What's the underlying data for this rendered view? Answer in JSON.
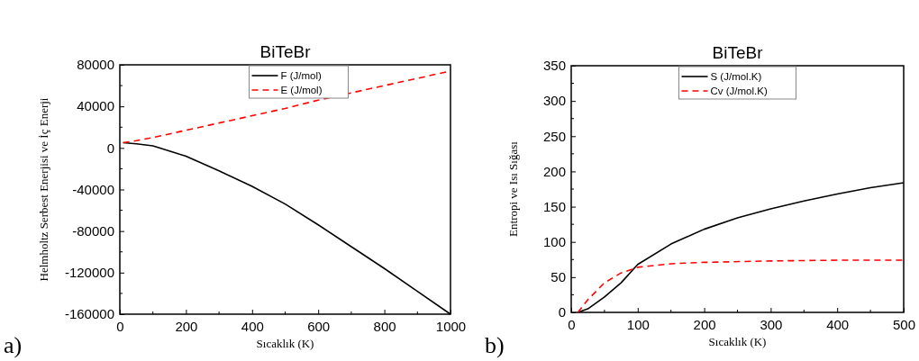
{
  "chart_data": [
    {
      "type": "line",
      "title": "BiTeBr",
      "xlabel": "Sıcaklık (K)",
      "ylabel": "Helmholtz Serbest Enerjisi ve İç Enerji",
      "annotations": [
        "a)"
      ],
      "legend": "top",
      "grid": false,
      "xlim": [
        0,
        1000
      ],
      "xticks": [
        0,
        200,
        400,
        600,
        800,
        1000
      ],
      "ylim": [
        -160000,
        80000
      ],
      "yticks": [
        -160000,
        -120000,
        -80000,
        -40000,
        0,
        40000,
        80000
      ],
      "series": [
        {
          "name": "F (J/mol)",
          "color": "#000000",
          "line_style": "solid",
          "x": [
            10,
            50,
            100,
            200,
            300,
            400,
            500,
            600,
            700,
            800,
            900,
            1000
          ],
          "values": [
            5000,
            4000,
            2000,
            -8000,
            -22000,
            -37000,
            -54000,
            -74000,
            -95000,
            -116000,
            -138000,
            -160000
          ]
        },
        {
          "name": "E (J/mol)",
          "color": "#ff0000",
          "line_style": "dashed",
          "x": [
            10,
            50,
            100,
            200,
            300,
            400,
            500,
            600,
            700,
            800,
            900,
            1000
          ],
          "values": [
            5000,
            7000,
            10000,
            17000,
            24000,
            31000,
            38000,
            46000,
            53000,
            60000,
            67000,
            74000
          ]
        }
      ]
    },
    {
      "type": "line",
      "title": "BiTeBr",
      "xlabel": "Sıcaklık (K)",
      "ylabel": "Entropi ve Isı Sığası",
      "annotations": [
        "b)"
      ],
      "legend": "top",
      "grid": false,
      "xlim": [
        0,
        500
      ],
      "xticks": [
        0,
        100,
        200,
        300,
        400,
        500
      ],
      "ylim": [
        0,
        350
      ],
      "yticks": [
        0,
        50,
        100,
        150,
        200,
        250,
        300,
        350
      ],
      "series": [
        {
          "name": "S (J/mol.K)",
          "color": "#000000",
          "line_style": "solid",
          "x": [
            10,
            25,
            50,
            75,
            100,
            150,
            200,
            250,
            300,
            350,
            400,
            450,
            500
          ],
          "values": [
            0,
            5,
            22,
            42,
            68,
            97,
            118,
            134,
            147,
            158,
            168,
            177,
            184
          ]
        },
        {
          "name": "Cv (J/mol.K)",
          "color": "#ff0000",
          "line_style": "dashed",
          "x": [
            10,
            25,
            50,
            75,
            100,
            150,
            200,
            300,
            400,
            500
          ],
          "values": [
            0,
            18,
            42,
            56,
            64,
            69,
            71,
            73,
            74,
            74
          ]
        }
      ]
    }
  ]
}
